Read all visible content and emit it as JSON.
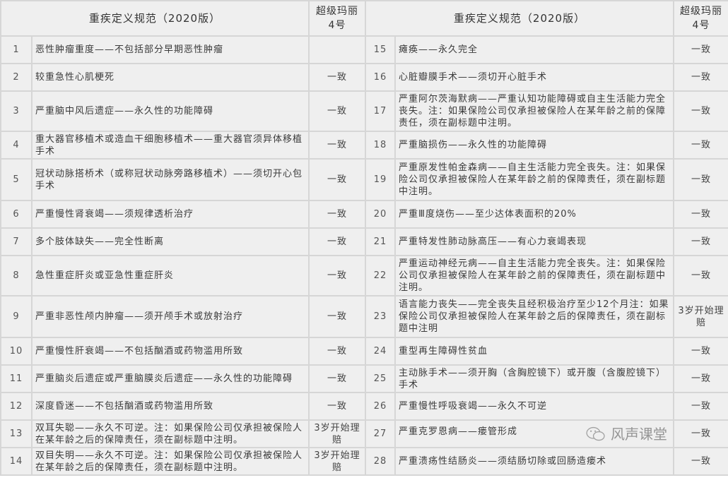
{
  "header": {
    "definition": "重疾定义规范（2020版）",
    "product_line1": "超级玛丽",
    "product_line2": "4号"
  },
  "rows": [
    {
      "l": {
        "n": "1",
        "t": "恶性肿瘤重度——不包括部分早期恶性肿瘤",
        "r": ""
      },
      "r": {
        "n": "15",
        "t": "瘫痪——永久完全",
        "r": "一致"
      },
      "h": "h1"
    },
    {
      "l": {
        "n": "2",
        "t": "较重急性心肌梗死",
        "r": "一致"
      },
      "r": {
        "n": "16",
        "t": "心脏瓣膜手术——须切开心脏手术",
        "r": "一致"
      },
      "h": "h1"
    },
    {
      "l": {
        "n": "3",
        "t": "严重脑中风后遗症——永久性的功能障碍",
        "r": "一致"
      },
      "r": {
        "n": "17",
        "t": "严重阿尔茨海默病——严重认知功能障碍或自主生活能力完全丧失。注：如果保险公司仅承担被保险人在某年龄之前的保障责任，须在副标题中注明。",
        "r": "一致"
      },
      "h": "h2"
    },
    {
      "l": {
        "n": "4",
        "t": "重大器官移植术或造血干细胞移植术——重大器官须异体移植手术",
        "r": "一致"
      },
      "r": {
        "n": "18",
        "t": "严重脑损伤——永久性的功能障碍",
        "r": "一致"
      },
      "h": "h1"
    },
    {
      "l": {
        "n": "5",
        "t": "冠状动脉搭桥术（或称冠状动脉旁路移植术）——须切开心包手术",
        "r": "一致"
      },
      "r": {
        "n": "19",
        "t": "严重原发性帕金森病——自主生活能力完全丧失。注：如果保险公司仅承担被保险人在某年龄之前的保障责任，须在副标题中注明。",
        "r": "一致"
      },
      "h": "h3"
    },
    {
      "l": {
        "n": "6",
        "t": "严重慢性肾衰竭——须规律透析治疗",
        "r": "一致"
      },
      "r": {
        "n": "20",
        "t": "严重Ⅲ度烧伤——至少达体表面积的20%",
        "r": "一致"
      },
      "h": "h1"
    },
    {
      "l": {
        "n": "7",
        "t": "多个肢体缺失——完全性断离",
        "r": "一致"
      },
      "r": {
        "n": "21",
        "t": "严重特发性肺动脉高压——有心力衰竭表现",
        "r": "一致"
      },
      "h": "h1"
    },
    {
      "l": {
        "n": "8",
        "t": "急性重症肝炎或亚急性重症肝炎",
        "r": "一致"
      },
      "r": {
        "n": "22",
        "t": "严重运动神经元病——自主生活能力完全丧失。注：如果保险公司仅承担被保险人在某年龄之前的保障责任，须在副标题中注明。",
        "r": "一致"
      },
      "h": "h2"
    },
    {
      "l": {
        "n": "9",
        "t": "严重非恶性颅内肿瘤——须开颅手术或放射治疗",
        "r": "一致"
      },
      "r": {
        "n": "23",
        "t": "语言能力丧失——完全丧失且经积极治疗至少12个月注：如果保险公司仅承担被保险人在某年龄之后的保障责任，须在副标题中注明",
        "r": "3岁开始理赔",
        "rb": true
      },
      "h": "h3"
    },
    {
      "l": {
        "n": "10",
        "t": "严重慢性肝衰竭——不包括酗酒或药物滥用所致",
        "r": "一致"
      },
      "r": {
        "n": "24",
        "t": "重型再生障碍性贫血",
        "r": "一致"
      },
      "h": "h1"
    },
    {
      "l": {
        "n": "11",
        "t": "严重脑炎后遗症或严重脑膜炎后遗症——永久性的功能障碍",
        "r": "一致"
      },
      "r": {
        "n": "25",
        "t": "主动脉手术——须开胸（含胸腔镜下）或开腹（含腹腔镜下）手术",
        "r": "一致"
      },
      "h": "h1"
    },
    {
      "l": {
        "n": "12",
        "t": "深度昏迷——不包括酗酒或药物滥用所致",
        "r": "一致"
      },
      "r": {
        "n": "26",
        "t": "严重慢性呼吸衰竭——永久不可逆",
        "r": "一致"
      },
      "h": "h1"
    },
    {
      "l": {
        "n": "13",
        "t": "双耳失聪——永久不可逆。注：如果保险公司仅承担被保险人在某年龄之后的保障责任，须在副标题中注明。",
        "r": "3岁开始理赔",
        "lb": true
      },
      "r": {
        "n": "27",
        "t": "严重克罗恩病——瘘管形成",
        "r": "一致"
      },
      "h": "h1"
    },
    {
      "l": {
        "n": "14",
        "t": "双目失明——永久不可逆。注：如果保险公司仅承担被保险人在某年龄之后的保障责任，须在副标题中注明。",
        "r": "3岁开始理赔",
        "lb": true
      },
      "r": {
        "n": "28",
        "t": "严重溃疡性结肠炎——须结肠切除或回肠造瘘术",
        "r": "一致"
      },
      "h": "h1"
    }
  ],
  "watermark": {
    "text": "风声课堂",
    "icon": "wechat-icon"
  }
}
